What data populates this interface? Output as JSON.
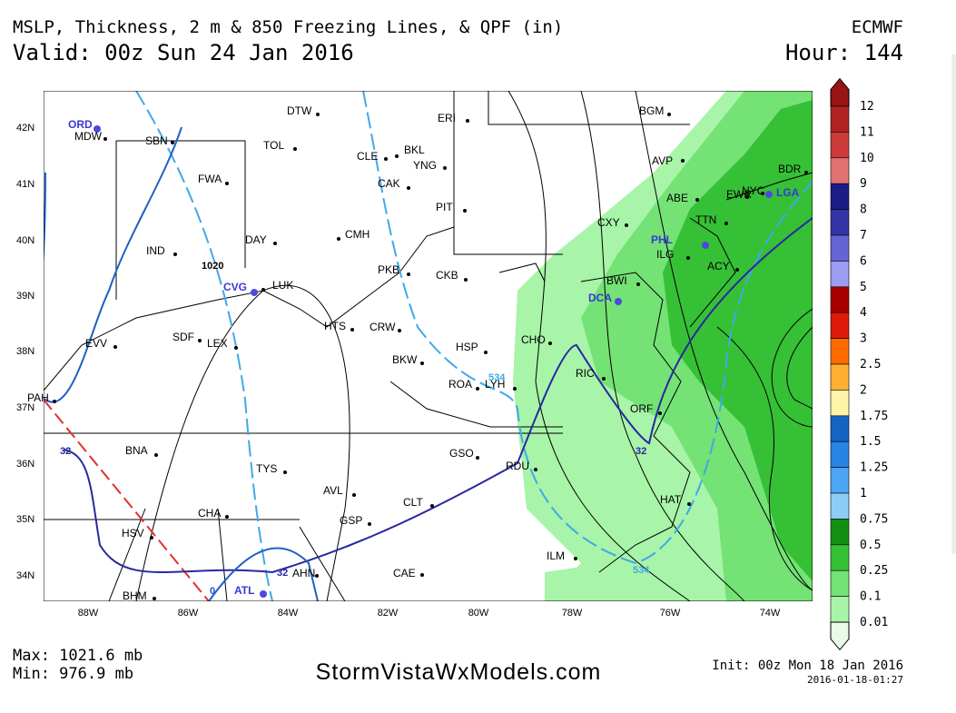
{
  "header": {
    "title": "MSLP, Thickness, 2 m & 850 Freezing Lines, & QPF (in)",
    "model": "ECMWF",
    "valid": "Valid: 00z Sun 24 Jan 2016",
    "hour": "Hour: 144"
  },
  "map": {
    "lat_labels": [
      "42N",
      "41N",
      "40N",
      "39N",
      "38N",
      "37N",
      "36N",
      "35N",
      "34N"
    ],
    "lon_labels": [
      "88W",
      "86W",
      "84W",
      "82W",
      "80W",
      "78W",
      "76W",
      "74W"
    ],
    "cities": [
      "DTW",
      "ERI",
      "BGM",
      "ORD",
      "MDW",
      "SBN",
      "TOL",
      "CLE",
      "BKL",
      "YNG",
      "AVP",
      "BDR",
      "FWA",
      "CAK",
      "ABE",
      "EWR",
      "NYC",
      "LGA",
      "PIT",
      "TTN",
      "CXY",
      "CMH",
      "DAY",
      "PHL",
      "IND",
      "ILG",
      "ACY",
      "PKB",
      "CKB",
      "BWI",
      "CVG",
      "LUK",
      "DCA",
      "HTS",
      "CRW",
      "CHO",
      "SDF",
      "LEX",
      "EVV",
      "HSP",
      "BKW",
      "RIC",
      "ROA",
      "LYH",
      "PAH",
      "ORF",
      "BNA",
      "GSO",
      "TYS",
      "RDU",
      "AVL",
      "HAT",
      "CLT",
      "CHA",
      "GSP",
      "HSV",
      "ILM",
      "CAE",
      "AHN",
      "ATL",
      "BHM"
    ],
    "contour_labels": [
      "1020",
      "32",
      "32",
      "32",
      "534",
      "534",
      "0"
    ]
  },
  "colorbar": {
    "labels": [
      "12",
      "11",
      "10",
      "9",
      "8",
      "7",
      "6",
      "5",
      "4",
      "3",
      "2.5",
      "2",
      "1.75",
      "1.5",
      "1.25",
      "1",
      "0.75",
      "0.5",
      "0.25",
      "0.1",
      "0.01"
    ],
    "colors": [
      "#9a1414",
      "#b22222",
      "#cc3a3a",
      "#e27272",
      "#1c1c86",
      "#3434a8",
      "#6464d4",
      "#9c9cf2",
      "#a80000",
      "#e01a0a",
      "#ff6a00",
      "#ffb030",
      "#fff4a8",
      "#1464c4",
      "#2884e4",
      "#4ca6f4",
      "#8ccdf8",
      "#129012",
      "#36c036",
      "#74e274",
      "#a8f4a8",
      "#e8fce8"
    ]
  },
  "footer": {
    "max": "Max: 1021.6 mb",
    "min": "Min: 976.9 mb",
    "site": "StormVistaWxModels.com",
    "init": "Init: 00z Mon 18 Jan 2016",
    "stamp": "2016-01-18-01:27"
  }
}
